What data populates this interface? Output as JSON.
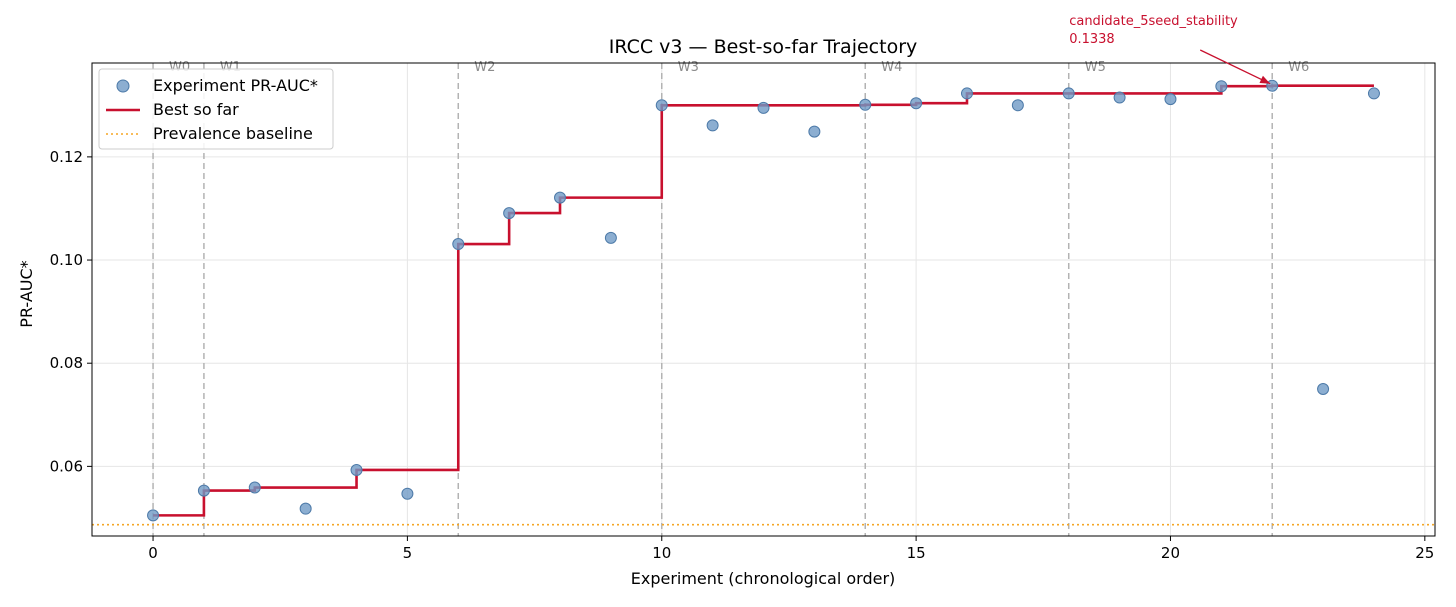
{
  "chart_data": {
    "type": "scatter",
    "title": "IRCC v3 — Best-so-far Trajectory",
    "xlabel": "Experiment (chronological order)",
    "ylabel": "PR-AUC*",
    "xlim": [
      -1.2,
      25.2
    ],
    "ylim": [
      0.0465,
      0.1382
    ],
    "xticks": [
      0,
      5,
      10,
      15,
      20,
      25
    ],
    "yticks": [
      0.06,
      0.08,
      0.1,
      0.12
    ],
    "ytick_labels": [
      "0.06",
      "0.08",
      "0.10",
      "0.12"
    ],
    "grid": true,
    "legend_position": "top-left",
    "series": [
      {
        "name": "Experiment PR-AUC*",
        "kind": "scatter",
        "color": "#6f9ac6",
        "x": [
          0,
          1,
          2,
          3,
          4,
          5,
          6,
          7,
          8,
          9,
          10,
          11,
          12,
          13,
          14,
          15,
          16,
          17,
          18,
          19,
          20,
          21,
          22,
          23,
          24
        ],
        "values": [
          0.0505,
          0.0553,
          0.0559,
          0.0518,
          0.0593,
          0.0547,
          0.1031,
          0.1091,
          0.1121,
          0.1043,
          0.13,
          0.1261,
          0.1295,
          0.1249,
          0.1301,
          0.1304,
          0.1323,
          0.13,
          0.1323,
          0.1315,
          0.1312,
          0.1337,
          0.1338,
          0.075,
          0.1323
        ]
      },
      {
        "name": "Best so far",
        "kind": "step",
        "color": "#c8102e",
        "x": [
          0,
          1,
          2,
          3,
          4,
          5,
          6,
          7,
          8,
          9,
          10,
          11,
          12,
          13,
          14,
          15,
          16,
          17,
          18,
          19,
          20,
          21,
          22,
          23,
          24
        ],
        "values": [
          0.0505,
          0.0553,
          0.0559,
          0.0559,
          0.0593,
          0.0593,
          0.1031,
          0.1091,
          0.1121,
          0.1121,
          0.13,
          0.13,
          0.13,
          0.13,
          0.1301,
          0.1304,
          0.1323,
          0.1323,
          0.1323,
          0.1323,
          0.1323,
          0.1337,
          0.1338,
          0.1338,
          0.1338
        ]
      },
      {
        "name": "Prevalence baseline",
        "kind": "hline",
        "color": "#f5a623",
        "value": 0.0487
      }
    ],
    "waves": [
      {
        "label": "W0",
        "x": 0
      },
      {
        "label": "W1",
        "x": 1
      },
      {
        "label": "W2",
        "x": 6
      },
      {
        "label": "W3",
        "x": 10
      },
      {
        "label": "W4",
        "x": 14
      },
      {
        "label": "W5",
        "x": 18
      },
      {
        "label": "W6",
        "x": 22
      }
    ],
    "annotation": {
      "name": "candidate_5seed_stability",
      "value_label": "0.1338",
      "x": 22,
      "y": 0.1338,
      "color": "#c8102e"
    }
  }
}
